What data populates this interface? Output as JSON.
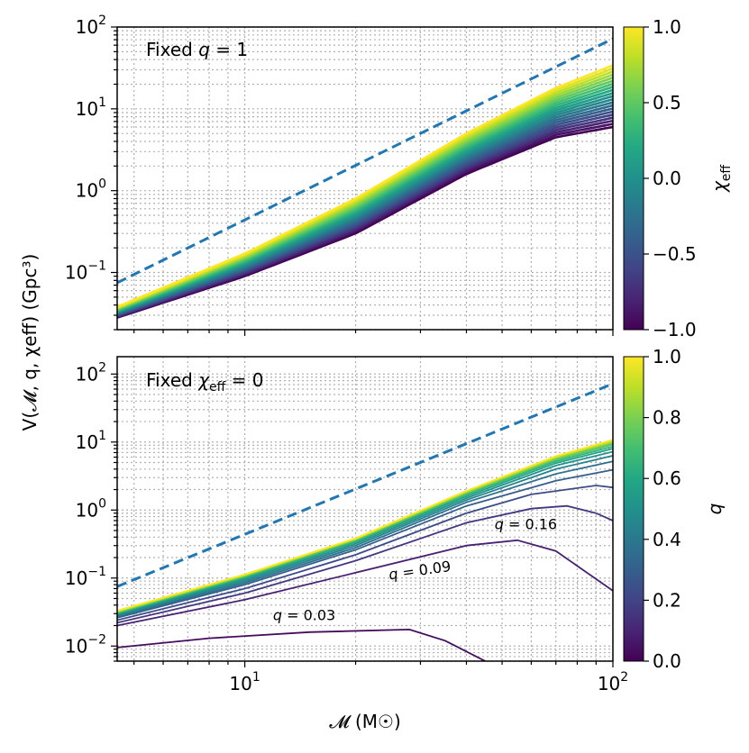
{
  "chart_data": {
    "type": "line",
    "xlabel": "𝓜 (M☉)",
    "ylabel": "V(𝓜, q, χeff)  (Gpc³)",
    "xscale": "log",
    "xlim": [
      4.5,
      100
    ],
    "xticks": [
      {
        "value": 10,
        "base": "10",
        "exp": "1"
      },
      {
        "value": 100,
        "base": "10",
        "exp": "2"
      }
    ],
    "panels": [
      {
        "id": "top",
        "title": "Fixed q = 1",
        "title_parts": {
          "prefix": "Fixed ",
          "var": "q",
          "suffix": " = 1"
        },
        "yscale": "log",
        "ylim": [
          0.02,
          100
        ],
        "yticks": [
          {
            "value": 0.1,
            "base": "10",
            "exp": "−1"
          },
          {
            "value": 1,
            "base": "10",
            "exp": "0"
          },
          {
            "value": 10,
            "base": "10",
            "exp": "1"
          },
          {
            "value": 100,
            "base": "10",
            "exp": "2"
          }
        ],
        "reference_line": {
          "style": "dashed",
          "color": "#1f77b4",
          "x": [
            4.5,
            100
          ],
          "y": [
            0.075,
            72
          ]
        },
        "colorbar": {
          "label": "χeff",
          "label_var": "χ",
          "label_sub": "eff",
          "min": -1.0,
          "max": 1.0,
          "ticks": [
            "1.0",
            "0.5",
            "0.0",
            "−0.5",
            "−1.0"
          ],
          "tick_values": [
            1.0,
            0.5,
            0.0,
            -0.5,
            -1.0
          ]
        },
        "series_family": {
          "parameter": "χeff",
          "range": [
            -1.0,
            1.0
          ],
          "count": 21,
          "x": [
            4.5,
            10,
            20,
            40,
            70,
            100
          ],
          "low_curve": [
            0.028,
            0.09,
            0.3,
            1.6,
            4.5,
            6.0
          ],
          "high_curve": [
            0.038,
            0.17,
            0.8,
            5.0,
            18,
            34
          ]
        }
      },
      {
        "id": "bottom",
        "title": "Fixed χeff = 0",
        "title_parts": {
          "prefix": "Fixed ",
          "var": "χ",
          "sub": "eff",
          "suffix": " = 0"
        },
        "yscale": "log",
        "ylim": [
          0.006,
          180
        ],
        "yticks": [
          {
            "value": 0.01,
            "base": "10",
            "exp": "−2"
          },
          {
            "value": 0.1,
            "base": "10",
            "exp": "−1"
          },
          {
            "value": 1,
            "base": "10",
            "exp": "0"
          },
          {
            "value": 10,
            "base": "10",
            "exp": "1"
          },
          {
            "value": 100,
            "base": "10",
            "exp": "2"
          }
        ],
        "reference_line": {
          "style": "dashed",
          "color": "#1f77b4",
          "x": [
            4.5,
            100
          ],
          "y": [
            0.075,
            72
          ]
        },
        "colorbar": {
          "label": "q",
          "min": 0.0,
          "max": 1.0,
          "ticks": [
            "1.0",
            "0.8",
            "0.6",
            "0.4",
            "0.2",
            "0.0"
          ],
          "tick_values": [
            1.0,
            0.8,
            0.6,
            0.4,
            0.2,
            0.0
          ]
        },
        "series": [
          {
            "q": 0.03,
            "x": [
              4.5,
              8,
              15,
              28,
              35,
              45
            ],
            "y": [
              0.0095,
              0.013,
              0.016,
              0.0175,
              0.012,
              0.006
            ]
          },
          {
            "q": 0.09,
            "x": [
              4.5,
              10,
              20,
              40,
              55,
              70,
              100
            ],
            "y": [
              0.02,
              0.048,
              0.12,
              0.3,
              0.36,
              0.25,
              0.065
            ]
          },
          {
            "q": 0.16,
            "x": [
              4.5,
              10,
              20,
              40,
              60,
              75,
              90,
              100
            ],
            "y": [
              0.022,
              0.06,
              0.18,
              0.65,
              1.05,
              1.15,
              0.9,
              0.7
            ]
          },
          {
            "q": 0.23,
            "x": [
              4.5,
              10,
              20,
              40,
              60,
              90,
              100
            ],
            "y": [
              0.024,
              0.07,
              0.22,
              0.9,
              1.7,
              2.3,
              2.15
            ]
          },
          {
            "q": 0.3,
            "x": [
              4.5,
              10,
              20,
              40,
              70,
              100
            ],
            "y": [
              0.026,
              0.08,
              0.26,
              1.15,
              2.7,
              3.9
            ]
          },
          {
            "q": 0.37,
            "x": [
              4.5,
              10,
              20,
              40,
              70,
              100
            ],
            "y": [
              0.027,
              0.085,
              0.28,
              1.3,
              3.4,
              5.2
            ]
          },
          {
            "q": 0.44,
            "x": [
              4.5,
              10,
              20,
              40,
              70,
              100
            ],
            "y": [
              0.028,
              0.09,
              0.3,
              1.4,
              4.0,
              6.3
            ]
          },
          {
            "q": 0.51,
            "x": [
              4.5,
              10,
              20,
              40,
              70,
              100
            ],
            "y": [
              0.029,
              0.095,
              0.32,
              1.5,
              4.5,
              7.2
            ]
          },
          {
            "q": 0.58,
            "x": [
              4.5,
              10,
              20,
              40,
              70,
              100
            ],
            "y": [
              0.03,
              0.1,
              0.34,
              1.6,
              4.9,
              8.0
            ]
          },
          {
            "q": 0.65,
            "x": [
              4.5,
              10,
              20,
              40,
              70,
              100
            ],
            "y": [
              0.031,
              0.103,
              0.35,
              1.7,
              5.2,
              8.6
            ]
          },
          {
            "q": 0.72,
            "x": [
              4.5,
              10,
              20,
              40,
              70,
              100
            ],
            "y": [
              0.031,
              0.106,
              0.36,
              1.75,
              5.5,
              9.2
            ]
          },
          {
            "q": 0.79,
            "x": [
              4.5,
              10,
              20,
              40,
              70,
              100
            ],
            "y": [
              0.032,
              0.108,
              0.37,
              1.8,
              5.7,
              9.7
            ]
          },
          {
            "q": 0.86,
            "x": [
              4.5,
              10,
              20,
              40,
              70,
              100
            ],
            "y": [
              0.032,
              0.11,
              0.375,
              1.85,
              5.9,
              10.1
            ]
          },
          {
            "q": 0.93,
            "x": [
              4.5,
              10,
              20,
              40,
              70,
              100
            ],
            "y": [
              0.033,
              0.112,
              0.38,
              1.9,
              6.1,
              10.5
            ]
          },
          {
            "q": 1.0,
            "x": [
              4.5,
              10,
              20,
              40,
              70,
              100
            ],
            "y": [
              0.033,
              0.113,
              0.385,
              1.92,
              6.2,
              10.8
            ]
          }
        ],
        "annotations": [
          {
            "text": "q = 0.03",
            "var": "q",
            "rest": " = 0.03",
            "x": 14.5,
            "y": 0.024,
            "rotate": 0
          },
          {
            "text": "q = 0.09",
            "var": "q",
            "rest": " = 0.09",
            "x": 30,
            "y": 0.11,
            "rotate": -8
          },
          {
            "text": "q = 0.16",
            "var": "q",
            "rest": " = 0.16",
            "x": 58,
            "y": 0.52,
            "rotate": 0
          }
        ]
      }
    ]
  }
}
